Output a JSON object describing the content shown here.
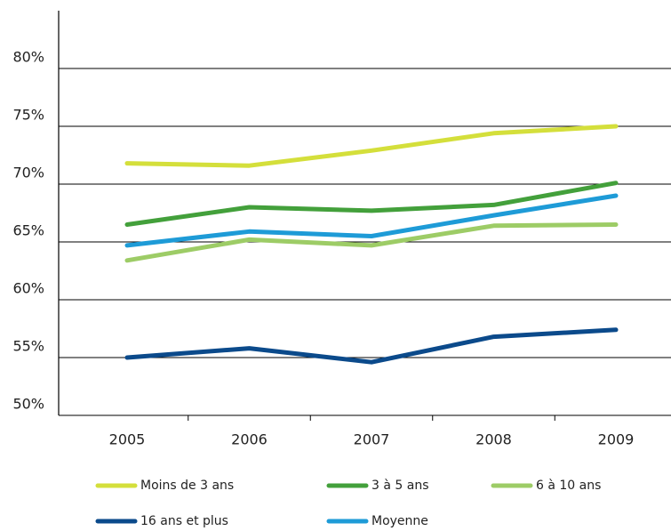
{
  "chart_data": {
    "type": "line",
    "categories": [
      "2005",
      "2006",
      "2007",
      "2008",
      "2009"
    ],
    "series": [
      {
        "name": "Moins de 3 ans",
        "color": "#d4df3b",
        "values": [
          71.8,
          71.6,
          72.9,
          74.4,
          75.0
        ]
      },
      {
        "name": "3 à 5 ans",
        "color": "#43a03b",
        "values": [
          66.5,
          68.0,
          67.7,
          68.2,
          70.1
        ]
      },
      {
        "name": "6 à 10 ans",
        "color": "#9dcc66",
        "values": [
          63.4,
          65.2,
          64.7,
          66.4,
          66.5
        ]
      },
      {
        "name": "16 ans et plus",
        "color": "#0b4a8b",
        "values": [
          55.0,
          55.8,
          54.6,
          56.8,
          57.4
        ]
      },
      {
        "name": "Moyenne",
        "color": "#1e9bd7",
        "values": [
          64.7,
          65.9,
          65.5,
          67.3,
          69.0
        ]
      }
    ],
    "ylim": [
      50,
      85
    ],
    "yticks": [
      {
        "value": 50,
        "label": "50%"
      },
      {
        "value": 55,
        "label": "55%"
      },
      {
        "value": 60,
        "label": "60%"
      },
      {
        "value": 65,
        "label": "65%"
      },
      {
        "value": 70,
        "label": "70%"
      },
      {
        "value": 75,
        "label": "75%"
      },
      {
        "value": 80,
        "label": "80%"
      }
    ],
    "grid": true
  }
}
